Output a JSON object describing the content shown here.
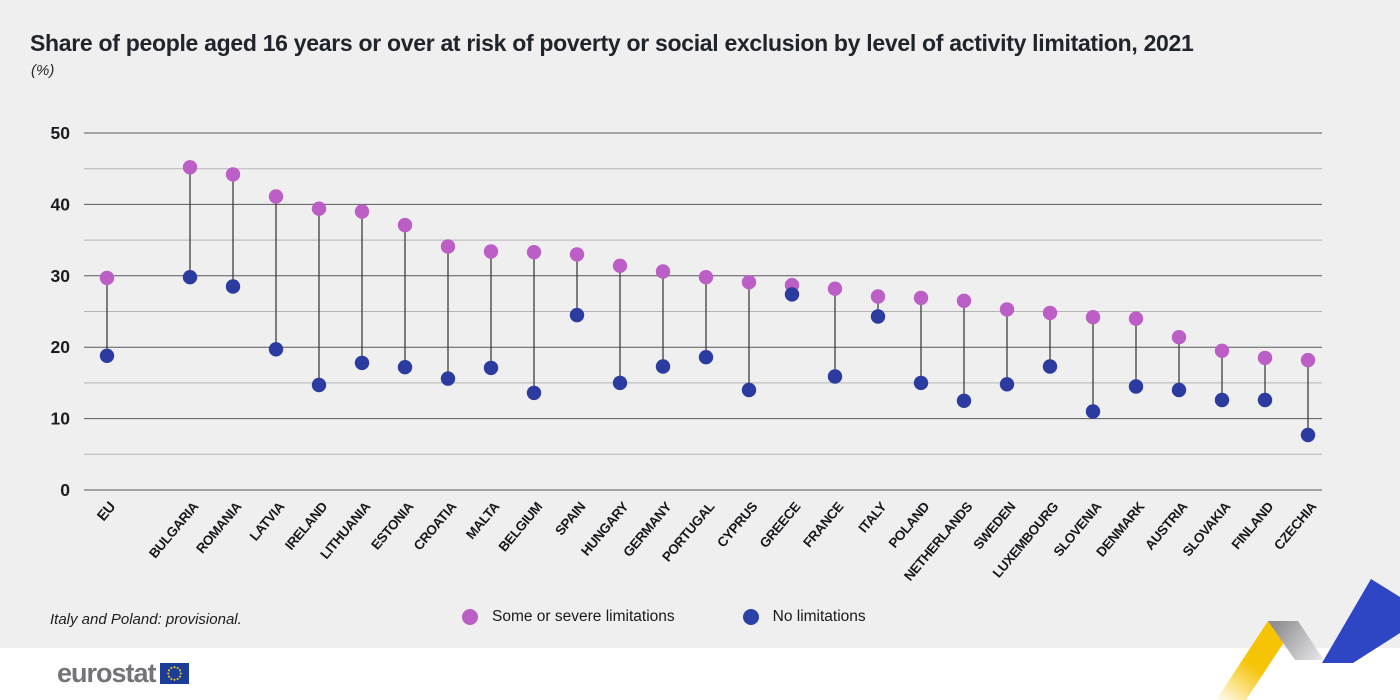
{
  "header": {
    "title": "Share of people aged 16 years or over at risk of poverty or social exclusion by level of activity limitation, 2021",
    "subtitle": "(%)"
  },
  "chart_data": {
    "type": "scatter",
    "subtype": "dumbbell-dot-plot",
    "categories": [
      "EU",
      "BULGARIA",
      "ROMANIA",
      "LATVIA",
      "IRELAND",
      "LITHUANIA",
      "ESTONIA",
      "CROATIA",
      "MALTA",
      "BELGIUM",
      "SPAIN",
      "HUNGARY",
      "GERMANY",
      "PORTUGAL",
      "CYPRUS",
      "GREECE",
      "FRANCE",
      "ITALY",
      "POLAND",
      "NETHERLANDS",
      "SWEDEN",
      "LUXEMBOURG",
      "SLOVENIA",
      "DENMARK",
      "AUSTRIA",
      "SLOVAKIA",
      "FINLAND",
      "CZECHIA"
    ],
    "series": [
      {
        "name": "Some or severe limitations",
        "color": "#bb5ec5",
        "values": [
          29.7,
          45.2,
          44.2,
          41.1,
          39.4,
          39.0,
          37.1,
          34.1,
          33.4,
          33.3,
          33.0,
          31.4,
          30.6,
          29.8,
          29.1,
          28.7,
          28.2,
          27.1,
          26.9,
          26.5,
          25.3,
          24.8,
          24.2,
          24.0,
          21.4,
          19.5,
          18.5,
          18.2
        ]
      },
      {
        "name": "No limitations",
        "color": "#2b3b9f",
        "values": [
          18.8,
          29.8,
          28.5,
          19.7,
          14.7,
          17.8,
          17.2,
          15.6,
          17.1,
          13.6,
          24.5,
          15.0,
          17.3,
          18.6,
          14.0,
          27.4,
          15.9,
          24.3,
          15.0,
          12.5,
          14.8,
          17.3,
          11.0,
          14.5,
          14.0,
          12.6,
          12.6,
          7.7
        ]
      }
    ],
    "title": "Share of people aged 16 years or over at risk of poverty or social exclusion by level of activity limitation, 2021",
    "xlabel": "",
    "ylabel": "(%)",
    "ylim": [
      0,
      50
    ],
    "yticks": [
      0,
      10,
      20,
      30,
      40,
      50
    ],
    "ygrid_step": 5,
    "grid": "horizontal gridlines every 5, darker lines on labeled ticks every 10",
    "legend_position": "bottom-center",
    "notes": "Vertical connector line joins the two dots of each country; EU shown first with a wider gap before BULGARIA; country labels rotated ~50°; EU label bold"
  },
  "footnote": {
    "text": "Italy and Poland: provisional."
  },
  "legend": {
    "items": [
      {
        "label": "Some or severe limitations",
        "color": "#bb5ec5"
      },
      {
        "label": "No limitations",
        "color": "#2c41a8"
      }
    ]
  },
  "footer": {
    "logo_text": "eurostat"
  },
  "colors": {
    "background": "#efefef",
    "footer_strip": "#ffffff",
    "grid_major": "#58585c",
    "grid_minor": "#b5b5b8",
    "connector": "#3d3d3d",
    "axis_text": "#1b1c20",
    "ribbon_yellow": "#f5c300",
    "ribbon_blue": "#2e45c4",
    "flag_blue": "#1b3c99",
    "flag_stars": "#f7c600"
  }
}
